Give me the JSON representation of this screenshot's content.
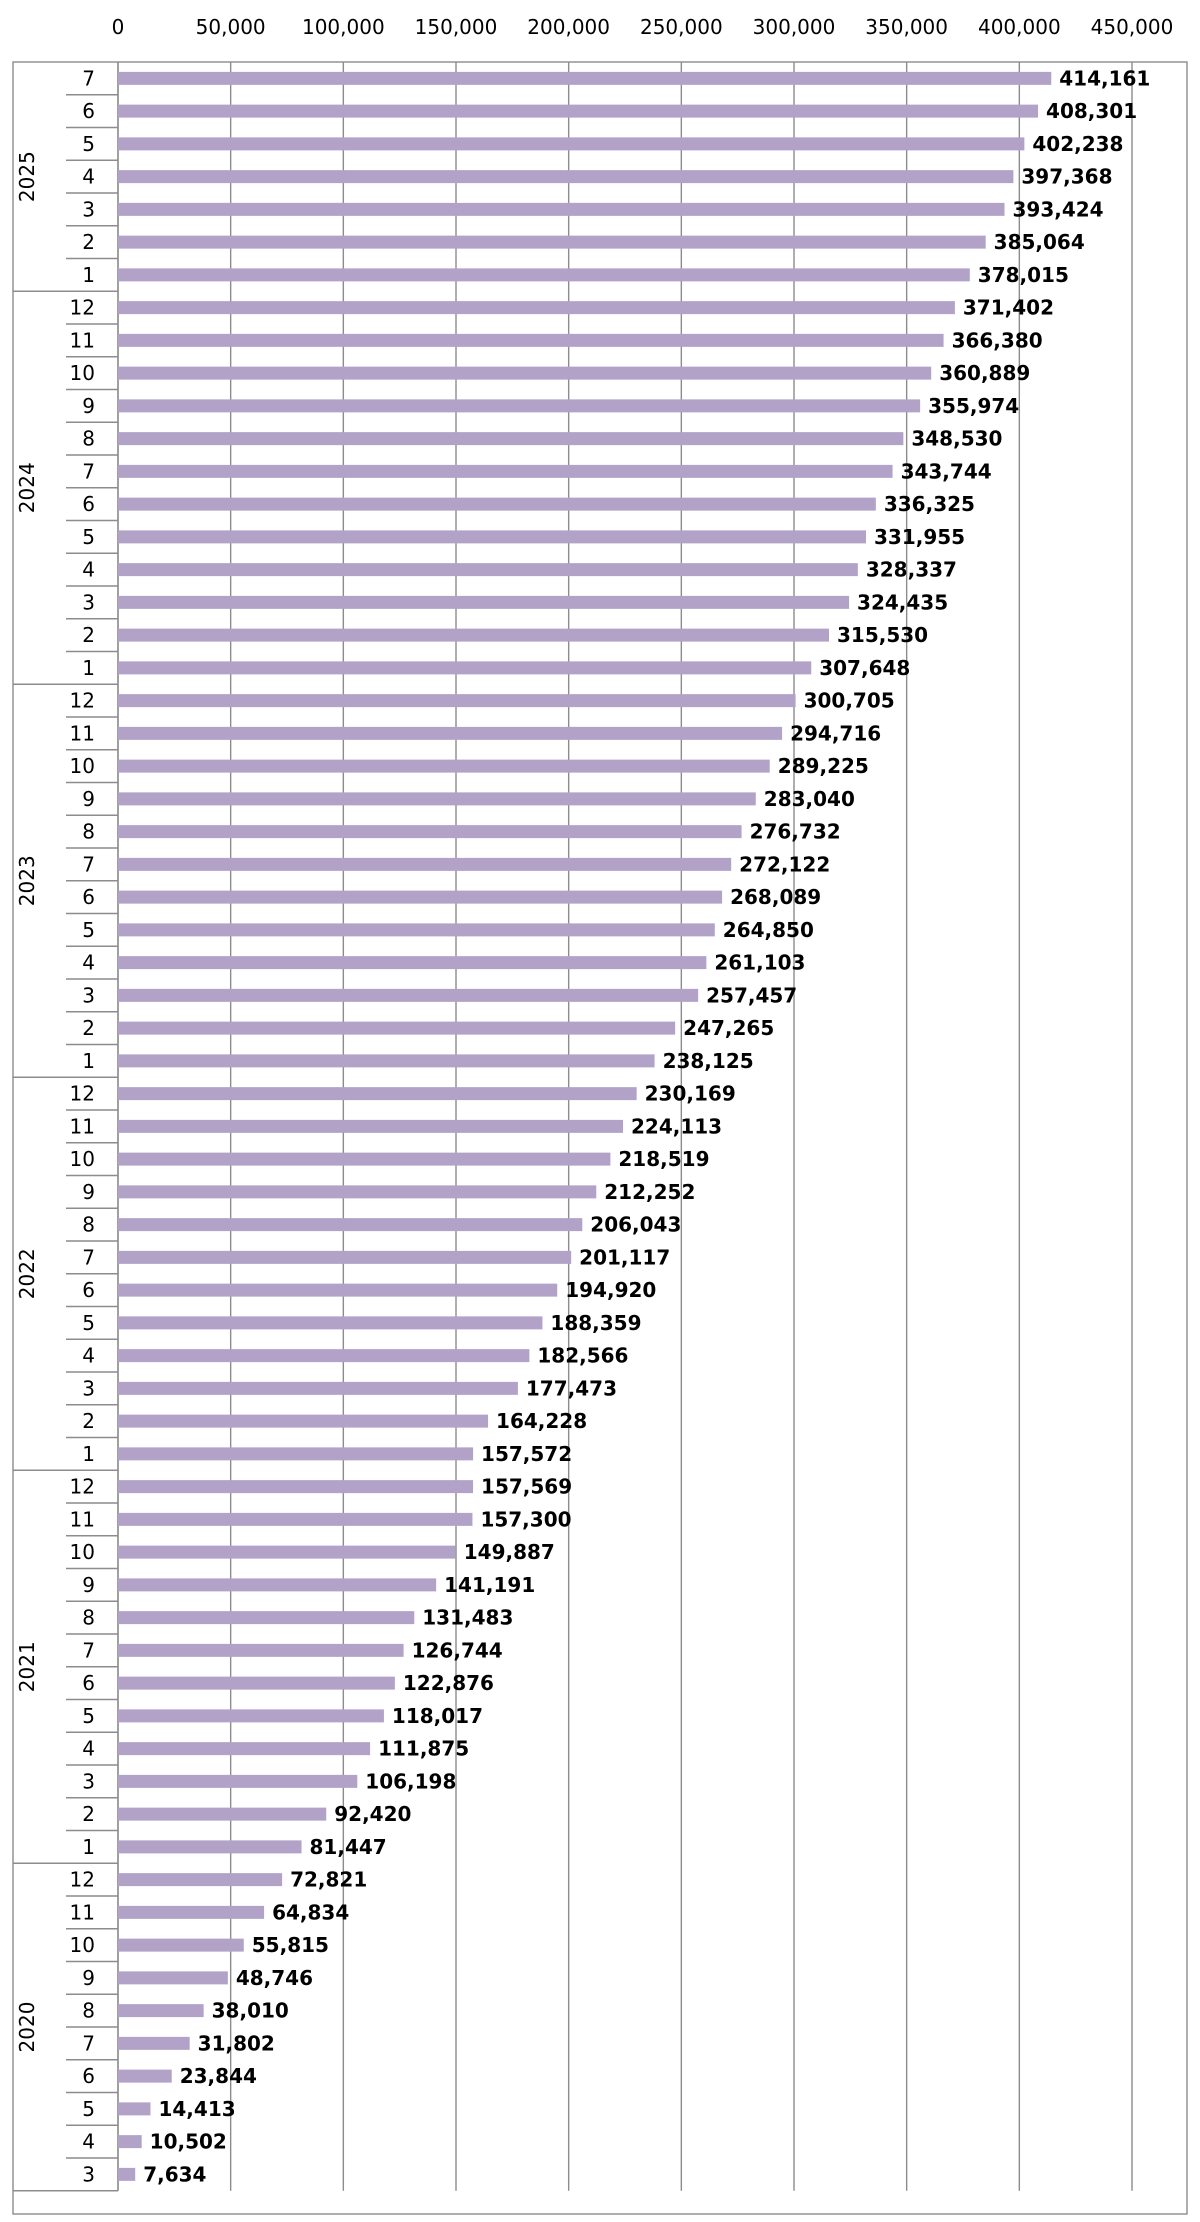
{
  "chart_data": {
    "type": "bar",
    "orientation": "horizontal",
    "xlim": [
      0,
      450000
    ],
    "x_ticks": [
      "0",
      "50,000",
      "100,000",
      "150,000",
      "200,000",
      "250,000",
      "300,000",
      "350,000",
      "400,000",
      "450,000"
    ],
    "x_axis_position": "top",
    "grid": true,
    "bar_color": "#b3a2c8",
    "groups": [
      {
        "year": "2025",
        "months": [
          "7",
          "6",
          "5",
          "4",
          "3",
          "2",
          "1"
        ],
        "values": [
          414161,
          408301,
          402238,
          397368,
          393424,
          385064,
          378015
        ],
        "labels": [
          "414,161",
          "408,301",
          "402,238",
          "397,368",
          "393,424",
          "385,064",
          "378,015"
        ]
      },
      {
        "year": "2024",
        "months": [
          "12",
          "11",
          "10",
          "9",
          "8",
          "7",
          "6",
          "5",
          "4",
          "3",
          "2",
          "1"
        ],
        "values": [
          371402,
          366380,
          360889,
          355974,
          348530,
          343744,
          336325,
          331955,
          328337,
          324435,
          315530,
          307648
        ],
        "labels": [
          "371,402",
          "366,380",
          "360,889",
          "355,974",
          "348,530",
          "343,744",
          "336,325",
          "331,955",
          "328,337",
          "324,435",
          "315,530",
          "307,648"
        ]
      },
      {
        "year": "2023",
        "months": [
          "12",
          "11",
          "10",
          "9",
          "8",
          "7",
          "6",
          "5",
          "4",
          "3",
          "2",
          "1"
        ],
        "values": [
          300705,
          294716,
          289225,
          283040,
          276732,
          272122,
          268089,
          264850,
          261103,
          257457,
          247265,
          238125
        ],
        "labels": [
          "300,705",
          "294,716",
          "289,225",
          "283,040",
          "276,732",
          "272,122",
          "268,089",
          "264,850",
          "261,103",
          "257,457",
          "247,265",
          "238,125"
        ]
      },
      {
        "year": "2022",
        "months": [
          "12",
          "11",
          "10",
          "9",
          "8",
          "7",
          "6",
          "5",
          "4",
          "3",
          "2",
          "1"
        ],
        "values": [
          230169,
          224113,
          218519,
          212252,
          206043,
          201117,
          194920,
          188359,
          182566,
          177473,
          164228,
          157572
        ],
        "labels": [
          "230,169",
          "224,113",
          "218,519",
          "212,252",
          "206,043",
          "201,117",
          "194,920",
          "188,359",
          "182,566",
          "177,473",
          "164,228",
          "157,572"
        ]
      },
      {
        "year": "2021",
        "months": [
          "12",
          "11",
          "10",
          "9",
          "8",
          "7",
          "6",
          "5",
          "4",
          "3",
          "2",
          "1"
        ],
        "values": [
          157569,
          157300,
          149887,
          141191,
          131483,
          126744,
          122876,
          118017,
          111875,
          106198,
          92420,
          81447
        ],
        "labels": [
          "157,569",
          "157,300",
          "149,887",
          "141,191",
          "131,483",
          "126,744",
          "122,876",
          "118,017",
          "111,875",
          "106,198",
          "92,420",
          "81,447"
        ]
      },
      {
        "year": "2020",
        "months": [
          "12",
          "11",
          "10",
          "9",
          "8",
          "7",
          "6",
          "5",
          "4",
          "3"
        ],
        "values": [
          72821,
          64834,
          55815,
          48746,
          38010,
          31802,
          23844,
          14413,
          10502,
          7634
        ],
        "labels": [
          "72,821",
          "64,834",
          "55,815",
          "48,746",
          "38,010",
          "31,802",
          "23,844",
          "14,413",
          "10,502",
          "7,634"
        ]
      }
    ]
  }
}
